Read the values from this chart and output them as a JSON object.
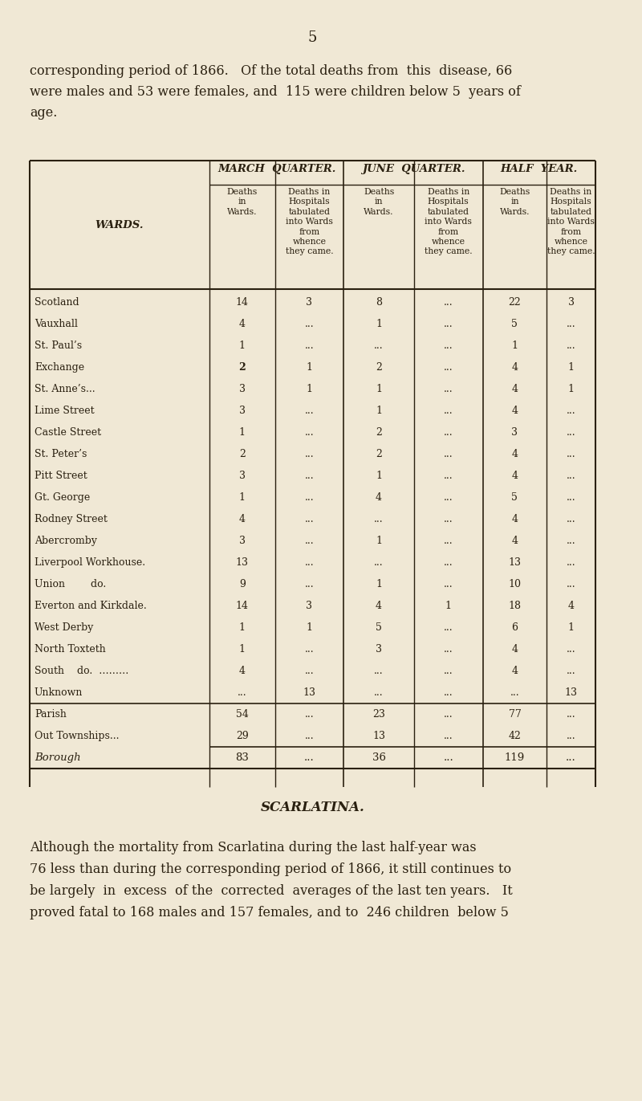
{
  "bg_color": "#f0e8d5",
  "page_number": "5",
  "intro_text": "corresponding period of 1866.   Of the total deaths from  this  disease, 66\nwere males and 53 were females, and  115 were children below 5  years of\nage.",
  "table_header_cols": [
    "MARCH  QUARTER.",
    "JUNE  QUARTER.",
    "HALF  YEAR."
  ],
  "sub_header_row_label": "WARDS.",
  "sub_headers": [
    "Deaths\nin\n Wards.",
    "Deaths in\nHospitals\ntabulated\ninto Wards\nfrom\nwhence\nthey came.",
    "Deaths\nin\nWards.",
    "Deaths in\nHospitals\ntabulated\ninto Wards\nfrom\nwhence\nthey came.",
    "Deaths\nin\nWards.",
    "Deaths in\nHospitals\ntabulated\ninto Wards\nfrom\nwhence\nthey came."
  ],
  "rows": [
    {
      "ward": "Scotland",
      "mq_d": "14",
      "mq_h": "3",
      "jq_d": "8",
      "jq_h": "...",
      "hy_d": "22",
      "hy_h": "3"
    },
    {
      "ward": "Vauxhall",
      "mq_d": "4",
      "mq_h": "...",
      "jq_d": "1",
      "jq_h": "...",
      "hy_d": "5",
      "hy_h": "..."
    },
    {
      "ward": "St. Paul’s",
      "mq_d": "1",
      "mq_h": "...",
      "jq_d": "...",
      "jq_h": "...",
      "hy_d": "1",
      "hy_h": "..."
    },
    {
      "ward": "Exchange",
      "mq_d": "2",
      "mq_h": "1",
      "jq_d": "2",
      "jq_h": "...",
      "hy_d": "4",
      "hy_h": "1"
    },
    {
      "ward": "St. Anne’s...",
      "mq_d": "3",
      "mq_h": "1",
      "jq_d": "1",
      "jq_h": "...",
      "hy_d": "4",
      "hy_h": "1"
    },
    {
      "ward": "Lime Street",
      "mq_d": "3",
      "mq_h": "...",
      "jq_d": "1",
      "jq_h": "...",
      "hy_d": "4",
      "hy_h": "..."
    },
    {
      "ward": "Castle Street",
      "mq_d": "1",
      "mq_h": "...",
      "jq_d": "2",
      "jq_h": "...",
      "hy_d": "3",
      "hy_h": "..."
    },
    {
      "ward": "St. Peter’s",
      "mq_d": "2",
      "mq_h": "...",
      "jq_d": "2",
      "jq_h": "...",
      "hy_d": "4",
      "hy_h": "..."
    },
    {
      "ward": "Pitt Street",
      "mq_d": "3",
      "mq_h": "...",
      "jq_d": "1",
      "jq_h": "...",
      "hy_d": "4",
      "hy_h": "..."
    },
    {
      "ward": "Gt. George",
      "mq_d": "1",
      "mq_h": "...",
      "jq_d": "4",
      "jq_h": "...",
      "hy_d": "5",
      "hy_h": "..."
    },
    {
      "ward": "Rodney Street",
      "mq_d": "4",
      "mq_h": "...",
      "jq_d": "...",
      "jq_h": "...",
      "hy_d": "4",
      "hy_h": "..."
    },
    {
      "ward": "Abercromby",
      "mq_d": "3",
      "mq_h": "...",
      "jq_d": "1",
      "jq_h": "...",
      "hy_d": "4",
      "hy_h": "..."
    },
    {
      "ward": "Liverpool Workhouse.",
      "mq_d": "13",
      "mq_h": "...",
      "jq_d": "...",
      "jq_h": "...",
      "hy_d": "13",
      "hy_h": "..."
    },
    {
      "ward": "Union        do.",
      "mq_d": "9",
      "mq_h": "...",
      "jq_d": "1",
      "jq_h": "...",
      "hy_d": "10",
      "hy_h": "..."
    },
    {
      "ward": "Everton and Kirkdale.",
      "mq_d": "14",
      "mq_h": "3",
      "jq_d": "4",
      "jq_h": "1",
      "hy_d": "18",
      "hy_h": "4"
    },
    {
      "ward": "West Derby",
      "mq_d": "1",
      "mq_h": "1",
      "jq_d": "5",
      "jq_h": "...",
      "hy_d": "6",
      "hy_h": "1"
    },
    {
      "ward": "North Toxteth",
      "mq_d": "1",
      "mq_h": "...",
      "jq_d": "3",
      "jq_h": "...",
      "hy_d": "4",
      "hy_h": "..."
    },
    {
      "ward": "South    do.  ………",
      "mq_d": "4",
      "mq_h": "...",
      "jq_d": "...",
      "jq_h": "...",
      "hy_d": "4",
      "hy_h": "..."
    },
    {
      "ward": "Unknown",
      "mq_d": "...",
      "mq_h": "13",
      "jq_d": "...",
      "jq_h": "...",
      "hy_d": "...",
      "hy_h": "13"
    }
  ],
  "summary_rows": [
    {
      "ward": "Parish",
      "mq_d": "54",
      "mq_h": "...",
      "jq_d": "23",
      "jq_h": "...",
      "hy_d": "77",
      "hy_h": "..."
    },
    {
      "ward": "Out Townships...",
      "mq_d": "29",
      "mq_h": "...",
      "jq_d": "13",
      "jq_h": "...",
      "hy_d": "42",
      "hy_h": "..."
    }
  ],
  "total_row": {
    "ward": "Borough",
    "mq_d": "83",
    "mq_h": "...",
    "jq_d": "36",
    "jq_h": "...",
    "hy_d": "119",
    "hy_h": "..."
  },
  "scarlatina_title": "SCARLATINA.",
  "scarlatina_text": "Although the mortality from Scarlatina during the last half-year was\n76 less than during the corresponding period of 1866, it still continues to\nbe largely  in  excess  of the  corrected  averages of the last ten years.   It\nproved fatal to 168 males and 157 females, and to  246 children  below 5"
}
